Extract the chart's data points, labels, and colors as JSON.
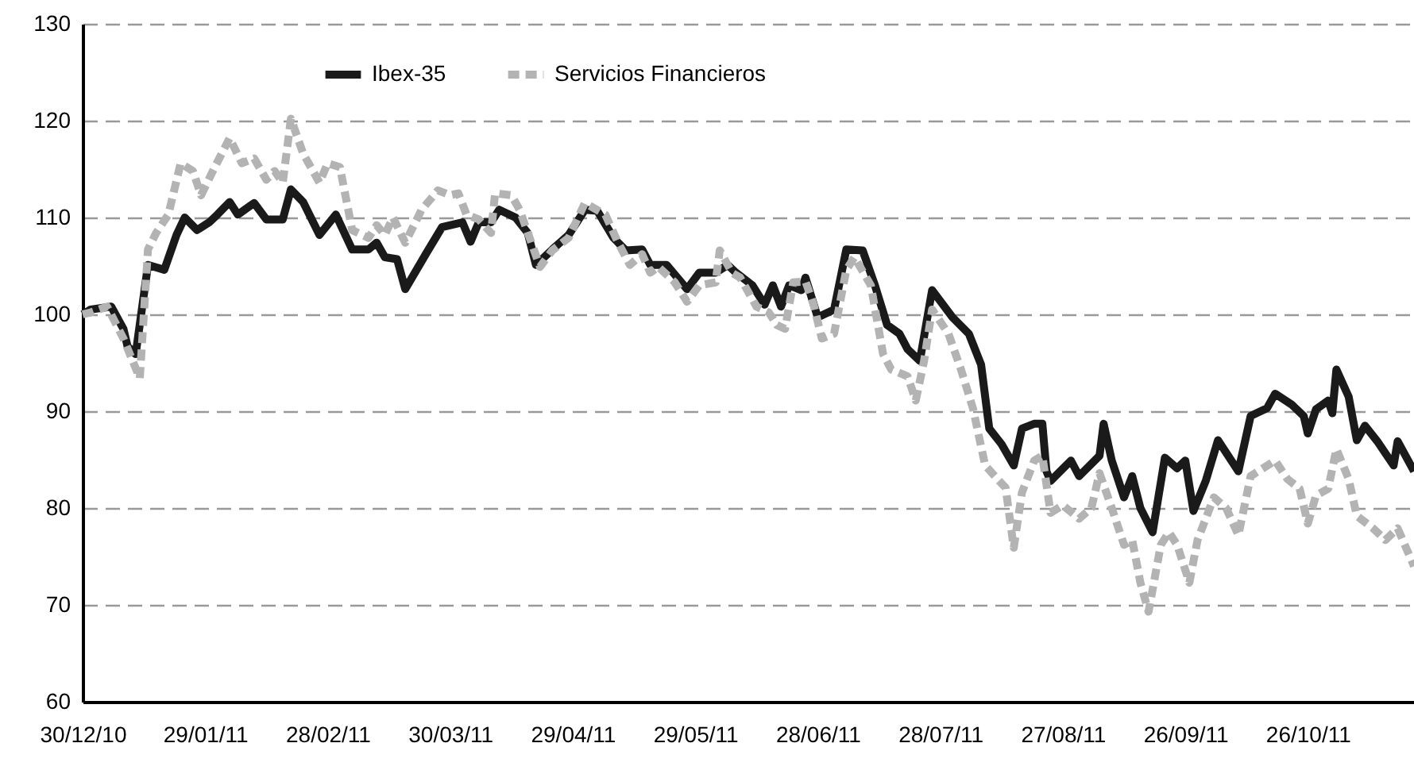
{
  "chart_data": {
    "type": "line",
    "xlim": [
      "2010-12-30",
      "2011-11-21"
    ],
    "xticks": [
      {
        "value": "2010-12-30",
        "label": "30/12/10"
      },
      {
        "value": "2011-01-29",
        "label": "29/01/11"
      },
      {
        "value": "2011-02-28",
        "label": "28/02/11"
      },
      {
        "value": "2011-03-30",
        "label": "30/03/11"
      },
      {
        "value": "2011-04-29",
        "label": "29/04/11"
      },
      {
        "value": "2011-05-29",
        "label": "29/05/11"
      },
      {
        "value": "2011-06-28",
        "label": "28/06/11"
      },
      {
        "value": "2011-07-28",
        "label": "28/07/11"
      },
      {
        "value": "2011-08-27",
        "label": "27/08/11"
      },
      {
        "value": "2011-09-26",
        "label": "26/09/11"
      },
      {
        "value": "2011-10-26",
        "label": "26/10/11"
      }
    ],
    "ylim": [
      60,
      130
    ],
    "yticks": [
      60,
      70,
      80,
      90,
      100,
      110,
      120,
      130
    ],
    "grid": "y",
    "legend": "top left",
    "marker": "none",
    "series": [
      {
        "name": "Ibex-35",
        "color": "#1a1a1a",
        "line_style": "solid",
        "x": [
          "2010-12-30",
          "2011-01-01",
          "2011-01-06",
          "2011-01-09",
          "2011-01-10",
          "2011-01-12",
          "2011-01-15",
          "2011-01-19",
          "2011-01-22",
          "2011-01-24",
          "2011-01-27",
          "2011-01-30",
          "2011-02-01",
          "2011-02-04",
          "2011-02-06",
          "2011-02-10",
          "2011-02-13",
          "2011-02-17",
          "2011-02-19",
          "2011-02-22",
          "2011-02-26",
          "2011-03-02",
          "2011-03-06",
          "2011-03-10",
          "2011-03-12",
          "2011-03-14",
          "2011-03-17",
          "2011-03-19",
          "2011-03-24",
          "2011-03-28",
          "2011-04-02",
          "2011-04-04",
          "2011-04-06",
          "2011-04-09",
          "2011-04-11",
          "2011-04-15",
          "2011-04-18",
          "2011-04-20",
          "2011-04-24",
          "2011-04-28",
          "2011-05-02",
          "2011-05-05",
          "2011-05-09",
          "2011-05-12",
          "2011-05-16",
          "2011-05-18",
          "2011-05-22",
          "2011-05-27",
          "2011-05-30",
          "2011-06-03",
          "2011-06-06",
          "2011-06-08",
          "2011-06-12",
          "2011-06-15",
          "2011-06-17",
          "2011-06-19",
          "2011-06-21",
          "2011-06-24",
          "2011-06-25",
          "2011-06-28",
          "2011-07-02",
          "2011-07-05",
          "2011-07-09",
          "2011-07-12",
          "2011-07-15",
          "2011-07-18",
          "2011-07-20",
          "2011-07-23",
          "2011-07-26",
          "2011-07-31",
          "2011-08-04",
          "2011-08-07",
          "2011-08-09",
          "2011-08-12",
          "2011-08-15",
          "2011-08-17",
          "2011-08-20",
          "2011-08-22",
          "2011-08-23",
          "2011-08-24",
          "2011-08-29",
          "2011-08-31",
          "2011-09-05",
          "2011-09-06",
          "2011-09-08",
          "2011-09-11",
          "2011-09-13",
          "2011-09-15",
          "2011-09-18",
          "2011-09-21",
          "2011-09-24",
          "2011-09-26",
          "2011-09-28",
          "2011-10-01",
          "2011-10-04",
          "2011-10-09",
          "2011-10-12",
          "2011-10-16",
          "2011-10-18",
          "2011-10-22",
          "2011-10-25",
          "2011-10-26",
          "2011-10-28",
          "2011-10-31",
          "2011-11-01",
          "2011-11-02",
          "2011-11-05",
          "2011-11-07",
          "2011-11-09",
          "2011-11-12",
          "2011-11-16",
          "2011-11-17",
          "2011-11-21"
        ],
        "values": [
          100,
          100.5,
          100.8,
          98.5,
          96.7,
          95.9,
          105.1,
          104.6,
          108.2,
          110,
          108.7,
          109.5,
          110.3,
          111.6,
          110.3,
          111.5,
          109.8,
          109.8,
          112.9,
          111.6,
          108.2,
          110.3,
          106.7,
          106.7,
          107.4,
          105.9,
          105.7,
          102.6,
          106.2,
          109,
          109.5,
          107.5,
          109.5,
          109.5,
          110.8,
          110,
          108.4,
          105.1,
          106.7,
          108.2,
          110.8,
          110.7,
          107.9,
          106.6,
          106.7,
          105.1,
          105.1,
          102.6,
          104.3,
          104.3,
          105.1,
          104.3,
          103,
          101,
          103,
          100.8,
          103,
          102.5,
          103.8,
          99.7,
          100.5,
          106.7,
          106.6,
          103,
          98.9,
          98,
          96.4,
          95.2,
          102.5,
          99.7,
          98,
          94.8,
          88.2,
          86.6,
          84.4,
          88.2,
          88.7,
          88.7,
          83.8,
          82.8,
          84.9,
          83.3,
          85.4,
          88.7,
          84.9,
          81.1,
          83.3,
          80,
          77.5,
          85.2,
          84.1,
          84.9,
          79.7,
          82.8,
          87,
          83.8,
          89.5,
          90.3,
          91.8,
          90.7,
          89.5,
          87.7,
          90.2,
          91.1,
          89.8,
          94.3,
          91.5,
          87,
          88.5,
          86.9,
          84.4,
          86.9,
          83.8
        ]
      },
      {
        "name": "Servicios Financieros",
        "color": "#b3b3b3",
        "line_style": "dashed",
        "x": [
          "2010-12-30",
          "2011-01-01",
          "2011-01-05",
          "2011-01-09",
          "2011-01-13",
          "2011-01-15",
          "2011-01-17",
          "2011-01-20",
          "2011-01-23",
          "2011-01-26",
          "2011-01-28",
          "2011-01-31",
          "2011-02-04",
          "2011-02-07",
          "2011-02-10",
          "2011-02-13",
          "2011-02-15",
          "2011-02-17",
          "2011-02-19",
          "2011-02-22",
          "2011-02-26",
          "2011-02-28",
          "2011-03-03",
          "2011-03-06",
          "2011-03-10",
          "2011-03-12",
          "2011-03-14",
          "2011-03-16",
          "2011-03-19",
          "2011-03-23",
          "2011-03-27",
          "2011-03-30",
          "2011-04-01",
          "2011-04-03",
          "2011-04-06",
          "2011-04-09",
          "2011-04-10",
          "2011-04-14",
          "2011-04-16",
          "2011-04-21",
          "2011-04-24",
          "2011-04-28",
          "2011-05-02",
          "2011-05-07",
          "2011-05-10",
          "2011-05-13",
          "2011-05-16",
          "2011-05-18",
          "2011-05-20",
          "2011-05-24",
          "2011-05-27",
          "2011-05-30",
          "2011-06-03",
          "2011-06-04",
          "2011-06-07",
          "2011-06-09",
          "2011-06-13",
          "2011-06-16",
          "2011-06-18",
          "2011-06-20",
          "2011-06-22",
          "2011-06-25",
          "2011-06-27",
          "2011-06-29",
          "2011-07-02",
          "2011-07-05",
          "2011-07-07",
          "2011-07-11",
          "2011-07-14",
          "2011-07-16",
          "2011-07-20",
          "2011-07-22",
          "2011-07-24",
          "2011-07-26",
          "2011-07-30",
          "2011-08-02",
          "2011-08-05",
          "2011-08-08",
          "2011-08-11",
          "2011-08-13",
          "2011-08-15",
          "2011-08-17",
          "2011-08-20",
          "2011-08-22",
          "2011-08-24",
          "2011-08-27",
          "2011-08-31",
          "2011-09-03",
          "2011-09-05",
          "2011-09-08",
          "2011-09-11",
          "2011-09-13",
          "2011-09-15",
          "2011-09-17",
          "2011-09-20",
          "2011-09-22",
          "2011-09-24",
          "2011-09-27",
          "2011-09-29",
          "2011-10-03",
          "2011-10-06",
          "2011-10-09",
          "2011-10-12",
          "2011-10-18",
          "2011-10-21",
          "2011-10-24",
          "2011-10-26",
          "2011-10-28",
          "2011-10-31",
          "2011-11-02",
          "2011-11-05",
          "2011-11-07",
          "2011-11-11",
          "2011-11-14",
          "2011-11-17",
          "2011-11-21"
        ],
        "values": [
          100,
          100.2,
          100.8,
          97.5,
          93.4,
          106.7,
          108.4,
          110.3,
          115.6,
          114.8,
          112.3,
          114.9,
          118.2,
          115.6,
          116.1,
          113.9,
          114.8,
          113.6,
          120.2,
          116.6,
          113.6,
          115.6,
          115.2,
          108.7,
          107.9,
          109.2,
          108.2,
          110,
          107.4,
          110.8,
          112.8,
          112.3,
          112.5,
          110.3,
          109.8,
          108.4,
          112.5,
          112.3,
          110.8,
          104.9,
          106.6,
          107.9,
          111.5,
          110.3,
          107.5,
          105.1,
          106.2,
          104.3,
          104.9,
          103.3,
          101.3,
          103,
          103.3,
          106.6,
          104.3,
          103.8,
          100.8,
          100.2,
          98.9,
          98.5,
          103.3,
          103.4,
          101,
          97.5,
          98,
          104.6,
          105.9,
          103,
          95.9,
          94.3,
          93.6,
          91.1,
          95.1,
          100.5,
          98,
          94.4,
          90.3,
          84.4,
          83,
          82.1,
          75.9,
          81.6,
          84.9,
          85.4,
          79.5,
          80.3,
          78.9,
          80,
          83.6,
          80,
          76.2,
          76.7,
          72.3,
          69.3,
          76.2,
          77.5,
          76.2,
          72.3,
          76.7,
          81.1,
          80,
          77.2,
          83.3,
          84.9,
          83,
          82,
          78.4,
          81.3,
          82,
          86.1,
          83,
          79.2,
          77.9,
          76.7,
          77.9,
          74
        ]
      }
    ]
  }
}
